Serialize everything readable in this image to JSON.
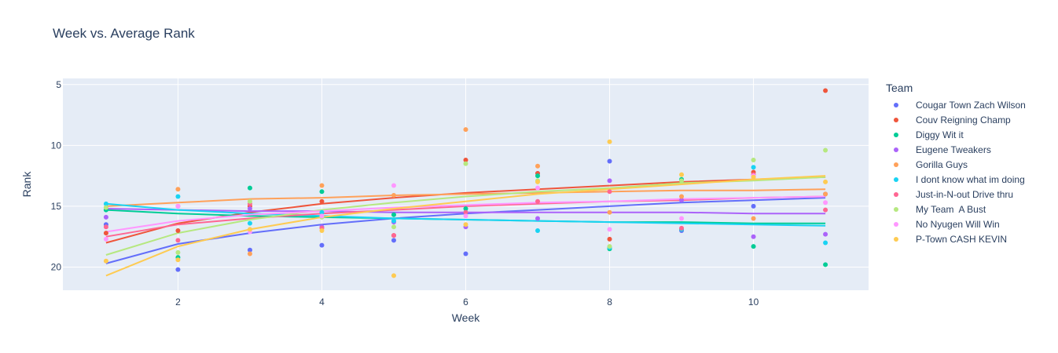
{
  "chart_data": {
    "type": "scatter",
    "title": "Week vs. Average Rank",
    "xlabel": "Week",
    "ylabel": "Rank",
    "xlim": [
      0.4,
      11.6
    ],
    "ylim": [
      21.9,
      4.5
    ],
    "y_reversed": true,
    "x_ticks": [
      2,
      4,
      6,
      8,
      10
    ],
    "y_ticks": [
      5,
      10,
      15,
      20
    ],
    "grid": true,
    "trendlines": "log",
    "legend_title": "Team",
    "legend_position": "right",
    "series": [
      {
        "name": "Cougar Town Zach Wilson",
        "color": "#636efa",
        "x": [
          1,
          2,
          3,
          4,
          5,
          6,
          7,
          8,
          9,
          10,
          11
        ],
        "y": [
          16.5,
          20.2,
          18.6,
          18.2,
          17.8,
          18.9,
          12.3,
          11.3,
          17.0,
          15.0,
          14.0
        ],
        "trend": [
          19.7,
          18.1,
          17.2,
          16.5,
          16.0,
          15.6,
          15.3,
          15.0,
          14.7,
          14.5,
          14.3
        ]
      },
      {
        "name": "Couv Reigning Champ",
        "color": "#ef553b",
        "x": [
          1,
          2,
          3,
          4,
          5,
          6,
          7,
          8,
          9,
          10,
          11
        ],
        "y": [
          17.2,
          17.0,
          15.0,
          14.6,
          17.4,
          11.2,
          12.3,
          17.7,
          16.9,
          12.2,
          5.5
        ],
        "trend": [
          18.0,
          16.4,
          15.5,
          14.8,
          14.3,
          13.9,
          13.6,
          13.3,
          13.0,
          12.8,
          12.6
        ]
      },
      {
        "name": "Diggy Wit it",
        "color": "#00cc96",
        "x": [
          1,
          2,
          3,
          4,
          5,
          6,
          7,
          8,
          9,
          10,
          11
        ],
        "y": [
          15.3,
          19.2,
          13.5,
          13.8,
          15.7,
          15.2,
          12.5,
          18.5,
          12.8,
          18.3,
          19.8
        ],
        "trend": [
          15.3,
          15.6,
          15.8,
          15.9,
          16.0,
          16.1,
          16.2,
          16.3,
          16.3,
          16.4,
          16.4
        ]
      },
      {
        "name": "Eugene Tweakers",
        "color": "#ab63fa",
        "x": [
          1,
          2,
          3,
          4,
          5,
          6,
          7,
          8,
          9,
          10,
          11
        ],
        "y": [
          15.9,
          15.0,
          15.2,
          16.7,
          16.3,
          16.7,
          16.0,
          12.9,
          14.5,
          17.5,
          17.3
        ],
        "trend": [
          15.2,
          15.3,
          15.4,
          15.4,
          15.5,
          15.5,
          15.5,
          15.5,
          15.5,
          15.6,
          15.6
        ]
      },
      {
        "name": "Gorilla Guys",
        "color": "#ffa15a",
        "x": [
          1,
          2,
          3,
          4,
          5,
          6,
          7,
          8,
          9,
          10,
          11
        ],
        "y": [
          15.1,
          13.6,
          18.9,
          13.3,
          14.1,
          8.7,
          11.7,
          15.5,
          14.2,
          16.0,
          14.0
        ],
        "trend": [
          15.0,
          14.7,
          14.4,
          14.3,
          14.1,
          14.0,
          13.9,
          13.8,
          13.7,
          13.7,
          13.6
        ]
      },
      {
        "name": "I dont know what im doing",
        "color": "#19d3f3",
        "x": [
          1,
          2,
          3,
          4,
          5,
          6,
          7,
          8,
          9,
          10,
          11
        ],
        "y": [
          14.8,
          14.2,
          16.4,
          15.5,
          16.2,
          15.5,
          17.0,
          18.4,
          16.9,
          11.8,
          18.0
        ],
        "trend": [
          14.8,
          15.3,
          15.6,
          15.8,
          16.0,
          16.1,
          16.2,
          16.3,
          16.4,
          16.5,
          16.6
        ]
      },
      {
        "name": "Just-in-N-out Drive thru",
        "color": "#ff6692",
        "x": [
          1,
          2,
          3,
          4,
          5,
          6,
          7,
          8,
          9,
          10,
          11
        ],
        "y": [
          16.7,
          17.8,
          14.8,
          16.8,
          17.4,
          15.5,
          14.6,
          13.8,
          16.8,
          12.4,
          15.3
        ],
        "trend": [
          17.5,
          16.5,
          16.0,
          15.6,
          15.3,
          15.0,
          14.8,
          14.6,
          14.5,
          14.3,
          14.2
        ]
      },
      {
        "name": "My Team  A Bust",
        "color": "#b6e880",
        "x": [
          1,
          2,
          3,
          4,
          5,
          6,
          7,
          8,
          9,
          10,
          11
        ],
        "y": [
          15.1,
          18.8,
          14.6,
          15.9,
          16.7,
          11.5,
          12.9,
          18.3,
          12.9,
          11.2,
          10.4
        ],
        "trend": [
          19.0,
          17.2,
          16.1,
          15.3,
          14.7,
          14.2,
          13.8,
          13.5,
          13.1,
          12.9,
          12.6
        ]
      },
      {
        "name": "No Nyugen Will Win",
        "color": "#ff97ff",
        "x": [
          1,
          2,
          3,
          4,
          5,
          6,
          7,
          8,
          9,
          10,
          11
        ],
        "y": [
          17.7,
          15.0,
          17.1,
          15.8,
          13.3,
          15.8,
          13.5,
          16.9,
          16.0,
          12.5,
          14.7
        ],
        "trend": [
          17.1,
          16.2,
          15.7,
          15.4,
          15.1,
          14.9,
          14.7,
          14.6,
          14.4,
          14.3,
          14.2
        ]
      },
      {
        "name": "P-Town CASH KEVIN",
        "color": "#fecb52",
        "x": [
          1,
          2,
          3,
          4,
          5,
          6,
          7,
          8,
          9,
          10,
          11
        ],
        "y": [
          19.5,
          19.4,
          16.9,
          17.0,
          20.7,
          16.5,
          13.0,
          9.7,
          12.4,
          12.6,
          13.0
        ],
        "trend": [
          20.7,
          18.3,
          16.9,
          15.9,
          15.2,
          14.6,
          14.0,
          13.6,
          13.2,
          12.8,
          12.5
        ]
      }
    ]
  }
}
